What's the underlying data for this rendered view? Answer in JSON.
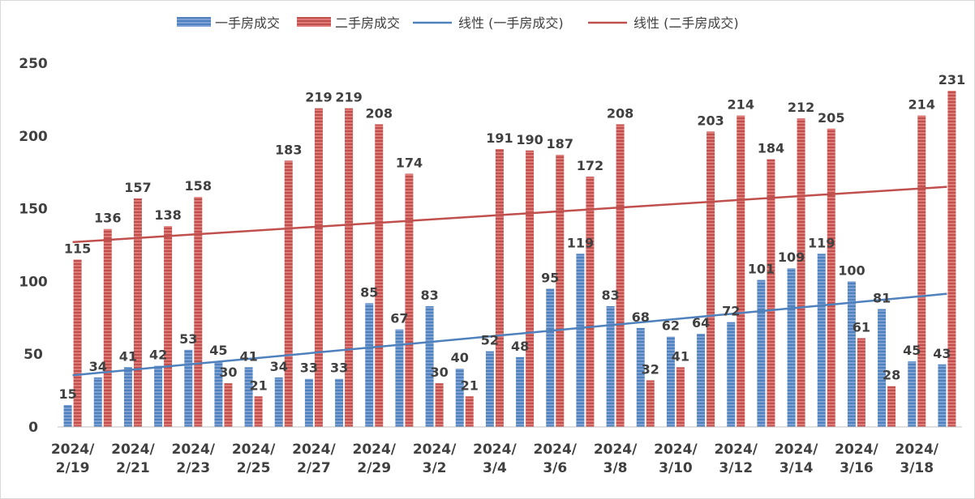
{
  "chart_data": {
    "type": "bar",
    "categories": [
      "2024/2/19",
      "2024/2/20",
      "2024/2/21",
      "2024/2/22",
      "2024/2/23",
      "2024/2/24",
      "2024/2/25",
      "2024/2/26",
      "2024/2/27",
      "2024/2/28",
      "2024/2/29",
      "2024/3/1",
      "2024/3/2",
      "2024/3/3",
      "2024/3/4",
      "2024/3/5",
      "2024/3/6",
      "2024/3/7",
      "2024/3/8",
      "2024/3/9",
      "2024/3/10",
      "2024/3/11",
      "2024/3/12",
      "2024/3/13",
      "2024/3/14",
      "2024/3/15",
      "2024/3/16",
      "2024/3/17",
      "2024/3/18",
      "2024/3/19"
    ],
    "x_tick_labels": [
      {
        "line1": "2024/",
        "line2": "2/19"
      },
      {
        "line1": "2024/",
        "line2": "2/21"
      },
      {
        "line1": "2024/",
        "line2": "2/23"
      },
      {
        "line1": "2024/",
        "line2": "2/25"
      },
      {
        "line1": "2024/",
        "line2": "2/27"
      },
      {
        "line1": "2024/",
        "line2": "2/29"
      },
      {
        "line1": "2024/",
        "line2": "3/2"
      },
      {
        "line1": "2024/",
        "line2": "3/4"
      },
      {
        "line1": "2024/",
        "line2": "3/6"
      },
      {
        "line1": "2024/",
        "line2": "3/8"
      },
      {
        "line1": "2024/",
        "line2": "3/10"
      },
      {
        "line1": "2024/",
        "line2": "3/12"
      },
      {
        "line1": "2024/",
        "line2": "3/14"
      },
      {
        "line1": "2024/",
        "line2": "3/16"
      },
      {
        "line1": "2024/",
        "line2": "3/18"
      }
    ],
    "series": [
      {
        "name": "一手房成交",
        "type": "bar",
        "color": "#4f81bd",
        "values": [
          15,
          34,
          41,
          42,
          53,
          45,
          41,
          34,
          33,
          33,
          85,
          67,
          83,
          40,
          52,
          48,
          95,
          119,
          83,
          68,
          62,
          64,
          72,
          101,
          109,
          119,
          100,
          81,
          45,
          43
        ]
      },
      {
        "name": "二手房成交",
        "type": "bar",
        "color": "#c0504d",
        "values": [
          115,
          136,
          157,
          138,
          158,
          30,
          21,
          183,
          219,
          219,
          208,
          174,
          30,
          21,
          191,
          190,
          187,
          172,
          208,
          32,
          41,
          203,
          214,
          184,
          212,
          205,
          61,
          28,
          214,
          231
        ]
      }
    ],
    "trendlines": [
      {
        "name": "线性 (一手房成交)",
        "type": "linear",
        "of_series": "一手房成交",
        "color": "#4f81bd",
        "start": 35.5,
        "end": 91.5
      },
      {
        "name": "线性 (二手房成交)",
        "type": "linear",
        "of_series": "二手房成交",
        "color": "#c0504d",
        "start": 127,
        "end": 165
      }
    ],
    "yticks": [
      "0",
      "50",
      "100",
      "150",
      "200",
      "250"
    ],
    "ylim": [
      0,
      250
    ],
    "grid": false,
    "legend_position": "top-center",
    "title": "",
    "xlabel": "",
    "ylabel": ""
  }
}
